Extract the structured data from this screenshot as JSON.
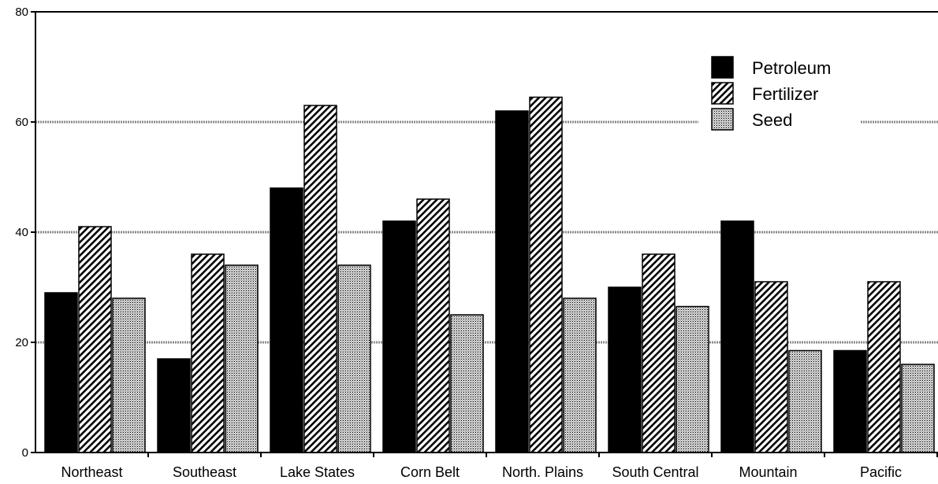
{
  "chart_data": {
    "type": "bar",
    "title": "",
    "xlabel": "",
    "ylabel": "",
    "ylim": [
      0,
      80
    ],
    "yticks": [
      0,
      20,
      40,
      60,
      80
    ],
    "grid": "horizontal dotted lines at 20, 40, 60",
    "legend_position": "top-right",
    "categories": [
      "Northeast",
      "Southeast",
      "Lake States",
      "Corn Belt",
      "North. Plains",
      "South Central",
      "Mountain",
      "Pacific"
    ],
    "series": [
      {
        "name": "Petroleum",
        "pattern": "solid",
        "color": "#000000",
        "values": [
          29,
          17,
          48,
          42,
          62,
          30,
          42,
          18.5
        ]
      },
      {
        "name": "Fertilizer",
        "pattern": "diagonal-hatch",
        "color": "#000000",
        "values": [
          41,
          36,
          63,
          46,
          64.5,
          36,
          31,
          31
        ]
      },
      {
        "name": "Seed",
        "pattern": "stipple",
        "color": "#000000",
        "values": [
          28,
          34,
          34,
          25,
          28,
          26.5,
          18.5,
          16
        ]
      }
    ]
  }
}
